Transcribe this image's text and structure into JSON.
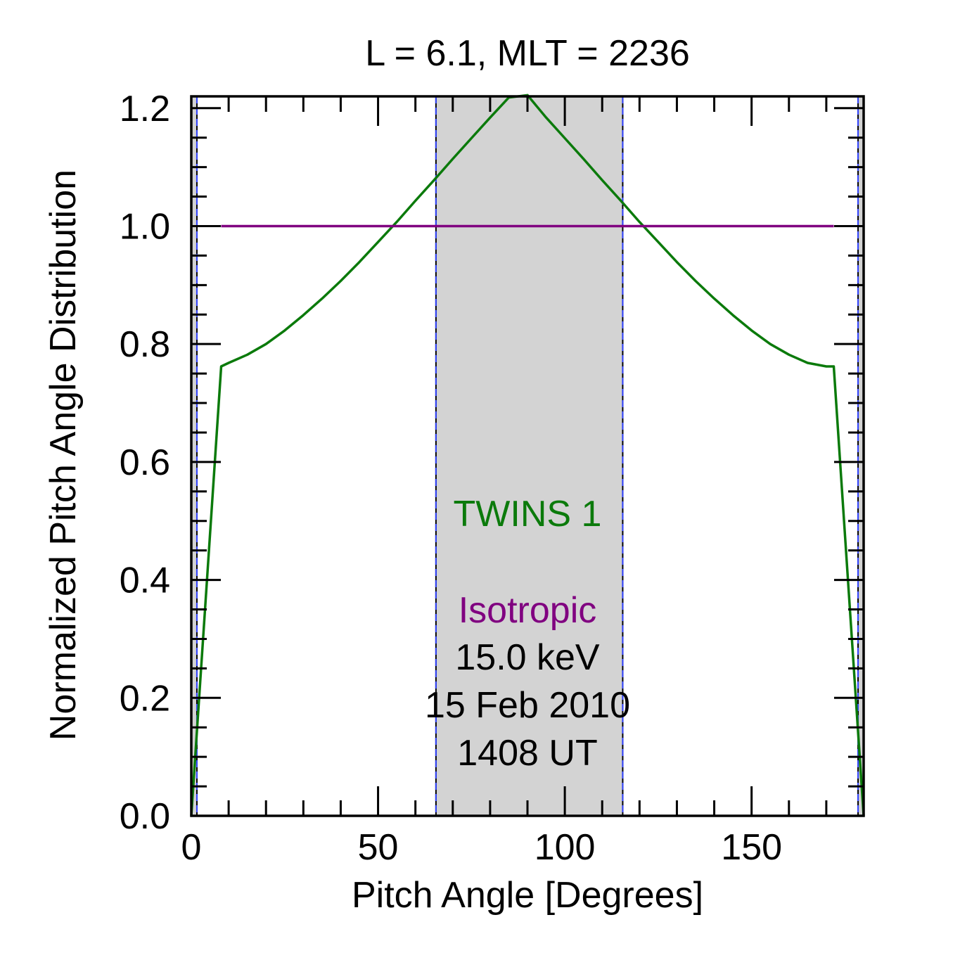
{
  "chart_data": {
    "type": "line",
    "title": "L =  6.1, MLT = 2236",
    "xlabel": "Pitch Angle [Degrees]",
    "ylabel": "Normalized Pitch Angle Distribution",
    "xlim": [
      0,
      180
    ],
    "ylim": [
      0,
      1.22
    ],
    "x_ticks": [
      0,
      50,
      100,
      150
    ],
    "x_tick_labels": [
      "0",
      "50",
      "100",
      "150"
    ],
    "x_minor_step": 10,
    "y_ticks": [
      0.0,
      0.2,
      0.4,
      0.6,
      0.8,
      1.0,
      1.2
    ],
    "y_tick_labels": [
      "0.0",
      "0.2",
      "0.4",
      "0.6",
      "0.8",
      "1.0",
      "1.2"
    ],
    "y_minor_step": 0.05,
    "grid": false,
    "shaded_regions": [
      {
        "x0": 0,
        "x1": 1.5,
        "color": "#d3d3d3"
      },
      {
        "x0": 65.5,
        "x1": 115.5,
        "color": "#d3d3d3"
      },
      {
        "x0": 178.5,
        "x1": 180,
        "color": "#d3d3d3"
      }
    ],
    "vertical_lines": [
      1.5,
      65.5,
      115.5,
      178.5
    ],
    "vertical_line_color": "#3344ff",
    "series": [
      {
        "name": "TWINS 1",
        "color": "#0b7a0b",
        "x": [
          0,
          8,
          10,
          15,
          20,
          25,
          30,
          35,
          40,
          45,
          50,
          55,
          60,
          65,
          70,
          75,
          80,
          85,
          90,
          95,
          100,
          105,
          110,
          115,
          120,
          125,
          130,
          135,
          140,
          145,
          150,
          155,
          160,
          165,
          170,
          172,
          180
        ],
        "y": [
          0.0,
          0.762,
          0.768,
          0.782,
          0.8,
          0.823,
          0.849,
          0.877,
          0.907,
          0.939,
          0.973,
          1.007,
          1.043,
          1.078,
          1.114,
          1.149,
          1.184,
          1.218,
          1.222,
          1.184,
          1.149,
          1.114,
          1.078,
          1.043,
          1.007,
          0.973,
          0.939,
          0.907,
          0.877,
          0.849,
          0.823,
          0.8,
          0.782,
          0.768,
          0.762,
          0.762,
          0.0
        ]
      },
      {
        "name": "Isotropic",
        "color": "#800080",
        "x": [
          8,
          172
        ],
        "y": [
          1.0,
          1.0
        ]
      }
    ],
    "annotations": [
      {
        "id": "legend-twins",
        "text": "TWINS 1",
        "color": "#0b7a0b"
      },
      {
        "id": "legend-isotropic",
        "text": "Isotropic",
        "color": "#800080"
      },
      {
        "id": "energy",
        "text": "15.0 keV",
        "color": "#000000"
      },
      {
        "id": "date",
        "text": "15 Feb 2010",
        "color": "#000000"
      },
      {
        "id": "time",
        "text": "1408 UT",
        "color": "#000000"
      }
    ]
  }
}
